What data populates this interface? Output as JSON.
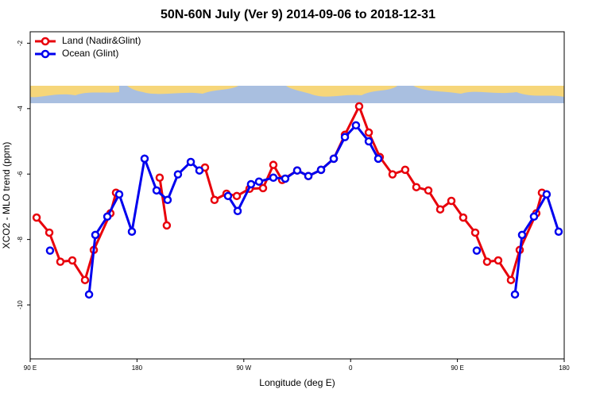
{
  "chart_data": {
    "type": "line",
    "title": "50N-60N July (Ver 9)   2014-09-06 to 2018-12-31",
    "x_label": "Longitude (deg E)",
    "y_label": "XCO2 - MLO trend (ppm)",
    "xlim": [
      90,
      540
    ],
    "xticks": [
      {
        "value": 90,
        "label": "90 E"
      },
      180,
      {
        "value": 270,
        "label": "90 W"
      },
      {
        "value": 360,
        "label": "0"
      },
      {
        "value": 450,
        "label": "90 E"
      },
      {
        "value": 540,
        "label": "180"
      }
    ],
    "ylim": [
      -11.65,
      -1.65
    ],
    "yticks": [
      -10,
      -8,
      -6,
      -4,
      -2
    ],
    "legend": "top-left",
    "series": [
      {
        "name": "Land (Nadir&Glint)",
        "color": "#e8000b",
        "x": [
          95.4,
          106.1,
          115.4,
          125.5,
          136.2,
          143.6,
          157.6,
          162.3,
          null,
          199.1,
          205.1,
          null,
          237.3,
          245.3,
          255.4,
          264.1,
          274.8,
          286.2,
          294.9,
          302.3,
          315.0,
          324.4,
          335.1,
          345.8,
          355.2,
          367.2,
          375.3,
          384.6,
          395.3,
          406.0,
          415.4,
          425.5,
          435.5,
          444.9,
          454.9,
          465.0,
          475.0,
          484.4,
          495.1,
          502.5,
          516.5,
          521.2
        ],
        "values": [
          -7.33,
          -7.79,
          -8.68,
          -8.64,
          -9.24,
          -8.32,
          -7.2,
          -6.57,
          null,
          -6.11,
          -7.57,
          null,
          -5.8,
          -6.79,
          -6.6,
          -6.67,
          -6.45,
          -6.43,
          -5.72,
          -6.18,
          -5.89,
          -6.06,
          -5.87,
          -5.53,
          -4.8,
          -3.93,
          -4.73,
          -5.48,
          -6.01,
          -5.87,
          -6.4,
          -6.5,
          -7.08,
          -6.82,
          -7.33,
          -7.79,
          -8.68,
          -8.64,
          -9.24,
          -8.32,
          -7.2,
          -6.57
        ]
      },
      {
        "name": "Ocean (Glint)",
        "color": "#0000ee",
        "x": [
          106.7,
          null,
          139.6,
          144.9,
          155.0,
          165.0,
          175.7,
          186.4,
          196.5,
          205.8,
          214.5,
          225.3,
          232.6,
          null,
          256.7,
          264.8,
          276.1,
          282.8,
          294.9,
          304.9,
          315.0,
          324.4,
          335.1,
          345.8,
          355.2,
          364.5,
          375.3,
          383.3,
          null,
          466.3,
          null,
          498.5,
          504.5,
          514.5,
          525.2,
          535.3
        ],
        "values": [
          -8.34,
          null,
          -9.68,
          -7.86,
          -7.3,
          -6.62,
          -7.76,
          -5.53,
          -6.5,
          -6.79,
          -6.01,
          -5.63,
          -5.89,
          null,
          -6.67,
          -7.13,
          -6.31,
          -6.23,
          -6.11,
          -6.14,
          -5.89,
          -6.06,
          -5.87,
          -5.53,
          -4.87,
          -4.51,
          -5.0,
          -5.53,
          null,
          -8.34,
          null,
          -9.68,
          -7.86,
          -7.3,
          -6.62,
          -7.76
        ]
      }
    ]
  }
}
